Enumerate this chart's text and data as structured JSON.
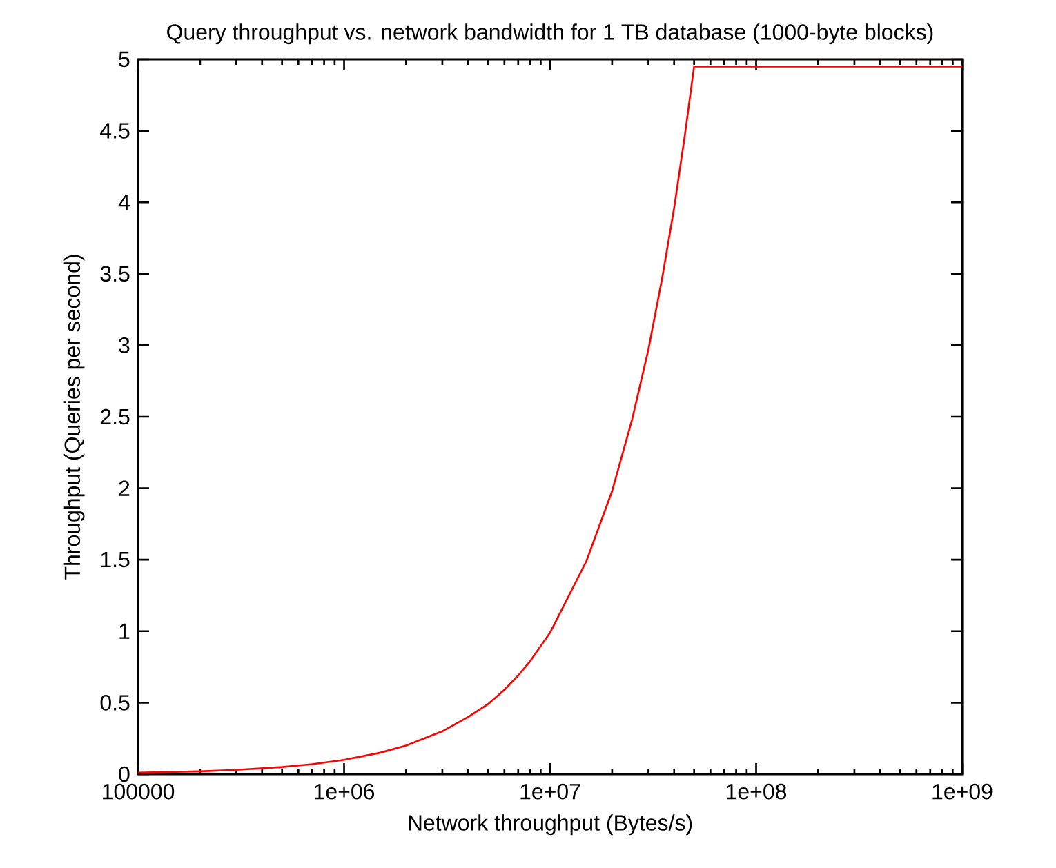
{
  "chart_data": {
    "type": "line",
    "title": "Query throughput vs. network bandwidth for 1 TB database (1000-byte blocks)",
    "xlabel": "Network throughput (Bytes/s)",
    "ylabel": "Throughput (Queries per second)",
    "log": "x",
    "marker": "none",
    "line_style": "solid",
    "xlim": [
      100000,
      1000000000
    ],
    "ylim": [
      0,
      5
    ],
    "xticks": [
      {
        "value": 100000,
        "label": "100000"
      },
      {
        "value": 1000000,
        "label": "1e+06"
      },
      {
        "value": 10000000,
        "label": "1e+07"
      },
      {
        "value": 100000000,
        "label": "1e+08"
      },
      {
        "value": 1000000000,
        "label": "1e+09"
      }
    ],
    "yticks": [
      0,
      0.5,
      1,
      1.5,
      2,
      2.5,
      3,
      3.5,
      4,
      4.5,
      5
    ],
    "series": [
      {
        "color": "#ff0000",
        "x": [
          100000,
          200000,
          300000,
          500000,
          700000,
          1000000,
          1500000,
          2000000,
          3000000,
          4000000,
          5000000,
          6000000,
          7000000,
          8000000,
          10000000,
          15000000,
          20000000,
          25000000,
          30000000,
          35000000,
          40000000,
          45000000,
          50000000,
          1000000000
        ],
        "values": [
          0.01,
          0.02,
          0.03,
          0.05,
          0.07,
          0.1,
          0.15,
          0.2,
          0.3,
          0.4,
          0.49,
          0.59,
          0.69,
          0.79,
          0.99,
          1.49,
          1.98,
          2.48,
          2.97,
          3.47,
          3.96,
          4.46,
          4.95,
          4.95
        ]
      }
    ]
  }
}
